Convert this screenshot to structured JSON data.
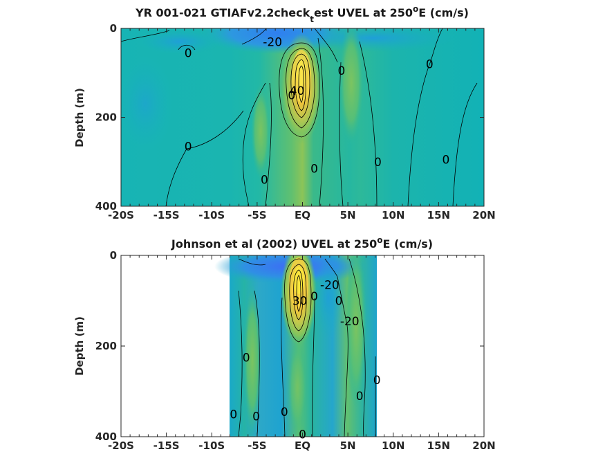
{
  "chart_data": [
    {
      "type": "heatmap",
      "title_pre": "YR 001-021 GTIAFv2.2check",
      "title_sub": "t",
      "title_mid": "est UVEL at 250",
      "title_sup": "o",
      "title_post": "E (cm/s)",
      "xlabel": "",
      "ylabel": "Depth (m)",
      "xlim": [
        -20,
        20
      ],
      "ylim": [
        400,
        0
      ],
      "x_ticks": [
        -20,
        -15,
        -10,
        -5,
        0,
        5,
        10,
        15,
        20
      ],
      "x_tick_labels": [
        "-20S",
        "-15S",
        "-10S",
        "-5S",
        "EQ",
        "5N",
        "10N",
        "15N",
        "20N"
      ],
      "y_ticks": [
        0,
        200,
        400
      ],
      "y_tick_labels": [
        "0",
        "200",
        "400"
      ],
      "data_extent": [
        -20,
        20
      ],
      "contour_labels": [
        {
          "text": "0",
          "lat": -12.6,
          "depth": 55
        },
        {
          "text": "-20",
          "lat": -3.3,
          "depth": 30
        },
        {
          "text": "0",
          "lat": 4.3,
          "depth": 95
        },
        {
          "text": "0",
          "lat": 14.0,
          "depth": 80
        },
        {
          "text": "40",
          "lat": -0.6,
          "depth": 140
        },
        {
          "text": "0",
          "lat": -1.2,
          "depth": 150
        },
        {
          "text": "0",
          "lat": -12.6,
          "depth": 265
        },
        {
          "text": "0",
          "lat": 1.3,
          "depth": 315
        },
        {
          "text": "0",
          "lat": 8.3,
          "depth": 300
        },
        {
          "text": "0",
          "lat": 15.8,
          "depth": 295
        },
        {
          "text": "0",
          "lat": -4.2,
          "depth": 340
        }
      ]
    },
    {
      "type": "heatmap",
      "title_pre": "Johnson et al (2002) UVEL at 250",
      "title_sub": "",
      "title_mid": "",
      "title_sup": "o",
      "title_post": "E (cm/s)",
      "xlabel": "",
      "ylabel": "Depth (m)",
      "xlim": [
        -20,
        20
      ],
      "ylim": [
        400,
        0
      ],
      "x_ticks": [
        -20,
        -15,
        -10,
        -5,
        0,
        5,
        10,
        15,
        20
      ],
      "x_tick_labels": [
        "-20S",
        "-15S",
        "-10S",
        "-5S",
        "EQ",
        "5N",
        "10N",
        "15N",
        "20N"
      ],
      "y_ticks": [
        0,
        200,
        400
      ],
      "y_tick_labels": [
        "0",
        "200",
        "400"
      ],
      "data_extent": [
        -8,
        8.2
      ],
      "contour_labels": [
        {
          "text": "-20",
          "lat": 3.0,
          "depth": 65
        },
        {
          "text": "30",
          "lat": -0.3,
          "depth": 100
        },
        {
          "text": "0",
          "lat": 1.3,
          "depth": 90
        },
        {
          "text": "0",
          "lat": 4.0,
          "depth": 100
        },
        {
          "text": "-20",
          "lat": 5.2,
          "depth": 145
        },
        {
          "text": "0",
          "lat": -6.2,
          "depth": 225
        },
        {
          "text": "0",
          "lat": 8.2,
          "depth": 275
        },
        {
          "text": "0",
          "lat": 6.3,
          "depth": 310
        },
        {
          "text": "0",
          "lat": -7.6,
          "depth": 350
        },
        {
          "text": "0",
          "lat": -5.1,
          "depth": 355
        },
        {
          "text": "0",
          "lat": -2.0,
          "depth": 345
        },
        {
          "text": "0",
          "lat": 0.0,
          "depth": 395
        }
      ]
    }
  ]
}
